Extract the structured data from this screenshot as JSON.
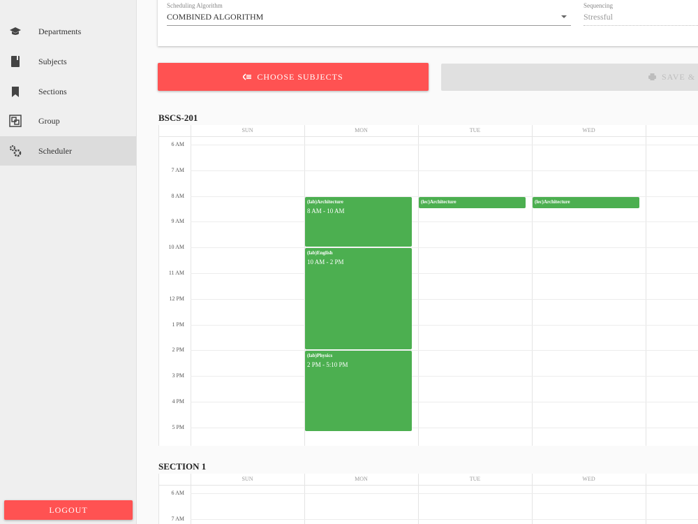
{
  "sidebar": {
    "items": [
      {
        "label": "Departments",
        "icon": "graduation-cap-icon"
      },
      {
        "label": "Subjects",
        "icon": "book-icon"
      },
      {
        "label": "Sections",
        "icon": "bookmark-icon"
      },
      {
        "label": "Group",
        "icon": "group-icon"
      },
      {
        "label": "Scheduler",
        "icon": "gears-icon"
      }
    ],
    "active": "Scheduler",
    "logout_label": "LOGOUT"
  },
  "form": {
    "algorithm_label": "Scheduling Algorithm",
    "algorithm_value": "COMBINED ALGORITHM",
    "sequencing_label": "Sequencing",
    "sequencing_value": "Stressful"
  },
  "buttons": {
    "choose_subjects": "CHOOSE SUBJECTS",
    "save": "SAVE &"
  },
  "calendar": {
    "days": [
      "SUN",
      "MON",
      "TUE",
      "WED",
      "T"
    ],
    "times": [
      "6 AM",
      "7 AM",
      "8 AM",
      "9 AM",
      "10 AM",
      "11 AM",
      "12 PM",
      "1 PM",
      "2 PM",
      "3 PM",
      "4 PM",
      "5 PM"
    ]
  },
  "sections": [
    {
      "title": "BSCS-201",
      "events": [
        {
          "day": 1,
          "start": 8,
          "end": 10,
          "title": "(lab)Architecture",
          "time": "8 AM - 10 AM"
        },
        {
          "day": 1,
          "start": 10,
          "end": 14,
          "title": "(lab)English",
          "time": "10 AM - 2 PM"
        },
        {
          "day": 1,
          "start": 14,
          "end": 17.167,
          "title": "(lab)Physics",
          "time": "2 PM - 5:10 PM"
        },
        {
          "day": 2,
          "start": 8,
          "end": 8.5,
          "title": "(lec)Architecture",
          "time": ""
        },
        {
          "day": 3,
          "start": 8,
          "end": 8.5,
          "title": "(lec)Architecture",
          "time": ""
        }
      ]
    },
    {
      "title": "SECTION 1",
      "events": []
    }
  ],
  "colors": {
    "accent": "#ff5252",
    "event": "#4caf50",
    "sidebar_bg": "#efefef",
    "active_bg": "#dcdcdc"
  }
}
